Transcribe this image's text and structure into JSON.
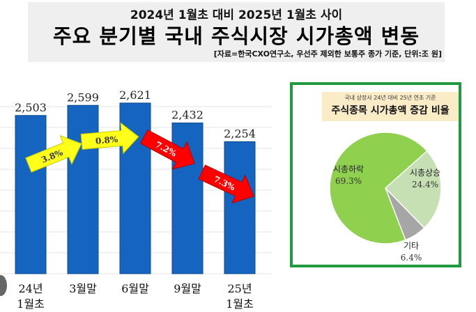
{
  "header": {
    "subtitle": "2024년 1월초 대비 2025년 1월초 사이",
    "title": "주요 분기별 국내 주식시장 시가총액 변동",
    "source": "[자료=한국CXO연구소, 우선주 제외한 보통주 종가 기준, 단위:조 원]"
  },
  "chart_data": [
    {
      "type": "bar",
      "title": "주요 분기별 국내 주식시장 시가총액 변동",
      "categories": [
        "24년|1월초",
        "3월말",
        "6월말",
        "9월말",
        "25년|1월초"
      ],
      "values": [
        2503,
        2599,
        2621,
        2432,
        2254
      ],
      "value_labels": [
        "2,503",
        "2,599",
        "2,621",
        "2,432",
        "2,254"
      ],
      "ylim": [
        1000,
        2700
      ],
      "grid": true,
      "bar_color": "#1565c0",
      "changes": [
        {
          "label": "3.8%",
          "direction": "up",
          "color": "#ffff1a"
        },
        {
          "label": "0.8%",
          "direction": "up",
          "color": "#ffff1a"
        },
        {
          "label": "7.2%",
          "direction": "down",
          "color": "#ff0000"
        },
        {
          "label": "7.3%",
          "direction": "down",
          "color": "#ff0000"
        }
      ]
    },
    {
      "type": "pie",
      "subtitle": "국내 상장사 24년 대비 25년 연초 기준",
      "title": "주식종목 시가총액 증감 비율",
      "slices": [
        {
          "name": "시총상승",
          "value": 24.4,
          "label": "24.4%",
          "color": "#c6e0b4"
        },
        {
          "name": "기타",
          "value": 6.4,
          "label": "6.4%",
          "color": "#a6a6a6"
        },
        {
          "name": "시총하락",
          "value": 69.3,
          "label": "69.3%",
          "color": "#8fd14f"
        }
      ]
    }
  ]
}
